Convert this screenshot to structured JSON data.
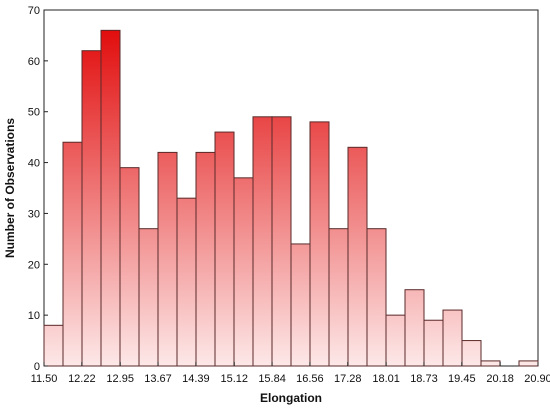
{
  "chart_data": {
    "type": "bar",
    "title": "",
    "xlabel": "Elongation",
    "ylabel": "Number of Observations",
    "xlim": [
      11.5,
      20.9
    ],
    "ylim": [
      0,
      70
    ],
    "bin_width": 0.3616,
    "x_ticks": [
      "11.50",
      "12.22",
      "12.95",
      "13.67",
      "14.39",
      "15.12",
      "15.84",
      "16.56",
      "17.28",
      "18.01",
      "18.73",
      "19.45",
      "20.18",
      "20.90"
    ],
    "y_ticks": [
      0,
      10,
      20,
      30,
      40,
      50,
      60,
      70
    ],
    "categories": [
      "11.50-11.86",
      "11.86-12.22",
      "12.22-12.59",
      "12.59-12.95",
      "12.95-13.31",
      "13.31-13.67",
      "13.67-14.03",
      "14.03-14.39",
      "14.39-14.76",
      "14.76-15.12",
      "15.12-15.48",
      "15.48-15.84",
      "15.84-16.20",
      "16.20-16.56",
      "16.56-16.92",
      "16.92-17.28",
      "17.28-17.65",
      "17.65-18.01",
      "18.01-18.37",
      "18.37-18.73",
      "18.73-19.09",
      "19.09-19.45",
      "19.45-19.82",
      "19.82-20.18",
      "20.18-20.54",
      "20.54-20.90"
    ],
    "values": [
      8,
      44,
      62,
      66,
      39,
      27,
      42,
      33,
      42,
      46,
      37,
      49,
      49,
      24,
      48,
      27,
      43,
      27,
      10,
      15,
      9,
      11,
      5,
      1,
      0,
      1
    ],
    "grid": false,
    "colors": {
      "bar_top": "#e00000",
      "bar_bottom": "#fde8e8",
      "outline": "#5a2a2a"
    }
  }
}
